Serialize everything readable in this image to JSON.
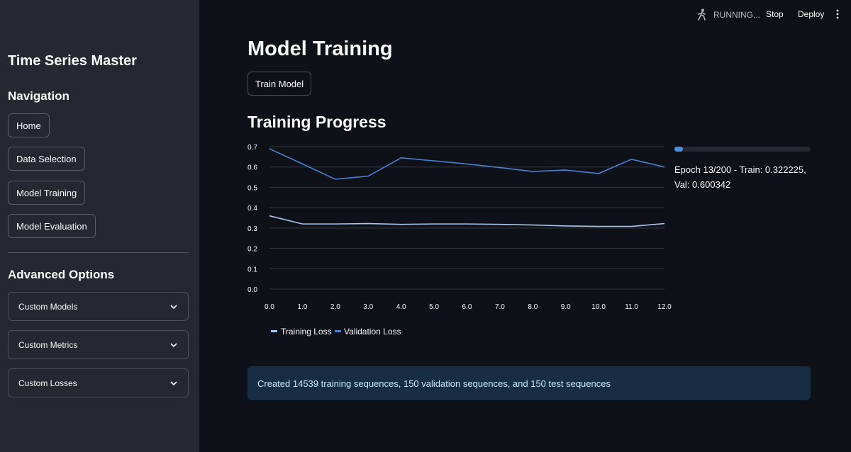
{
  "sidebar": {
    "app_title": "Time Series Master",
    "nav_heading": "Navigation",
    "nav_items": [
      "Home",
      "Data Selection",
      "Model Training",
      "Model Evaluation"
    ],
    "advanced_heading": "Advanced Options",
    "expanders": [
      "Custom Models",
      "Custom Metrics",
      "Custom Losses"
    ]
  },
  "header": {
    "status": "RUNNING...",
    "stop_label": "Stop",
    "deploy_label": "Deploy"
  },
  "main": {
    "title": "Model Training",
    "train_button": "Train Model",
    "section_title": "Training Progress",
    "progress": {
      "value": 0.065,
      "text": "Epoch 13/200 - Train: 0.322225, Val: 0.600342"
    },
    "info_message": "Created 14539 training sequences, 150 validation sequences, and 150 test sequences"
  },
  "colors": {
    "training": "#a7c7f2",
    "validation": "#4a7fd1",
    "accent": "#4a90e2"
  },
  "chart_data": {
    "type": "line",
    "title": "Training Progress",
    "x": [
      0,
      1,
      2,
      3,
      4,
      5,
      6,
      7,
      8,
      9,
      10,
      11,
      12
    ],
    "x_tick_labels": [
      "0.0",
      "1.0",
      "2.0",
      "3.0",
      "4.0",
      "5.0",
      "6.0",
      "7.0",
      "8.0",
      "9.0",
      "10.0",
      "11.0",
      "12.0"
    ],
    "y_tick_labels": [
      "0.0",
      "0.1",
      "0.2",
      "0.3",
      "0.4",
      "0.5",
      "0.6",
      "0.7"
    ],
    "ylim": [
      0,
      0.7
    ],
    "series": [
      {
        "name": "Training Loss",
        "values": [
          0.36,
          0.32,
          0.32,
          0.322,
          0.318,
          0.32,
          0.32,
          0.318,
          0.315,
          0.31,
          0.308,
          0.308,
          0.322
        ]
      },
      {
        "name": "Validation Loss",
        "values": [
          0.69,
          0.615,
          0.54,
          0.555,
          0.645,
          0.63,
          0.615,
          0.597,
          0.578,
          0.585,
          0.568,
          0.638,
          0.6
        ]
      }
    ]
  }
}
